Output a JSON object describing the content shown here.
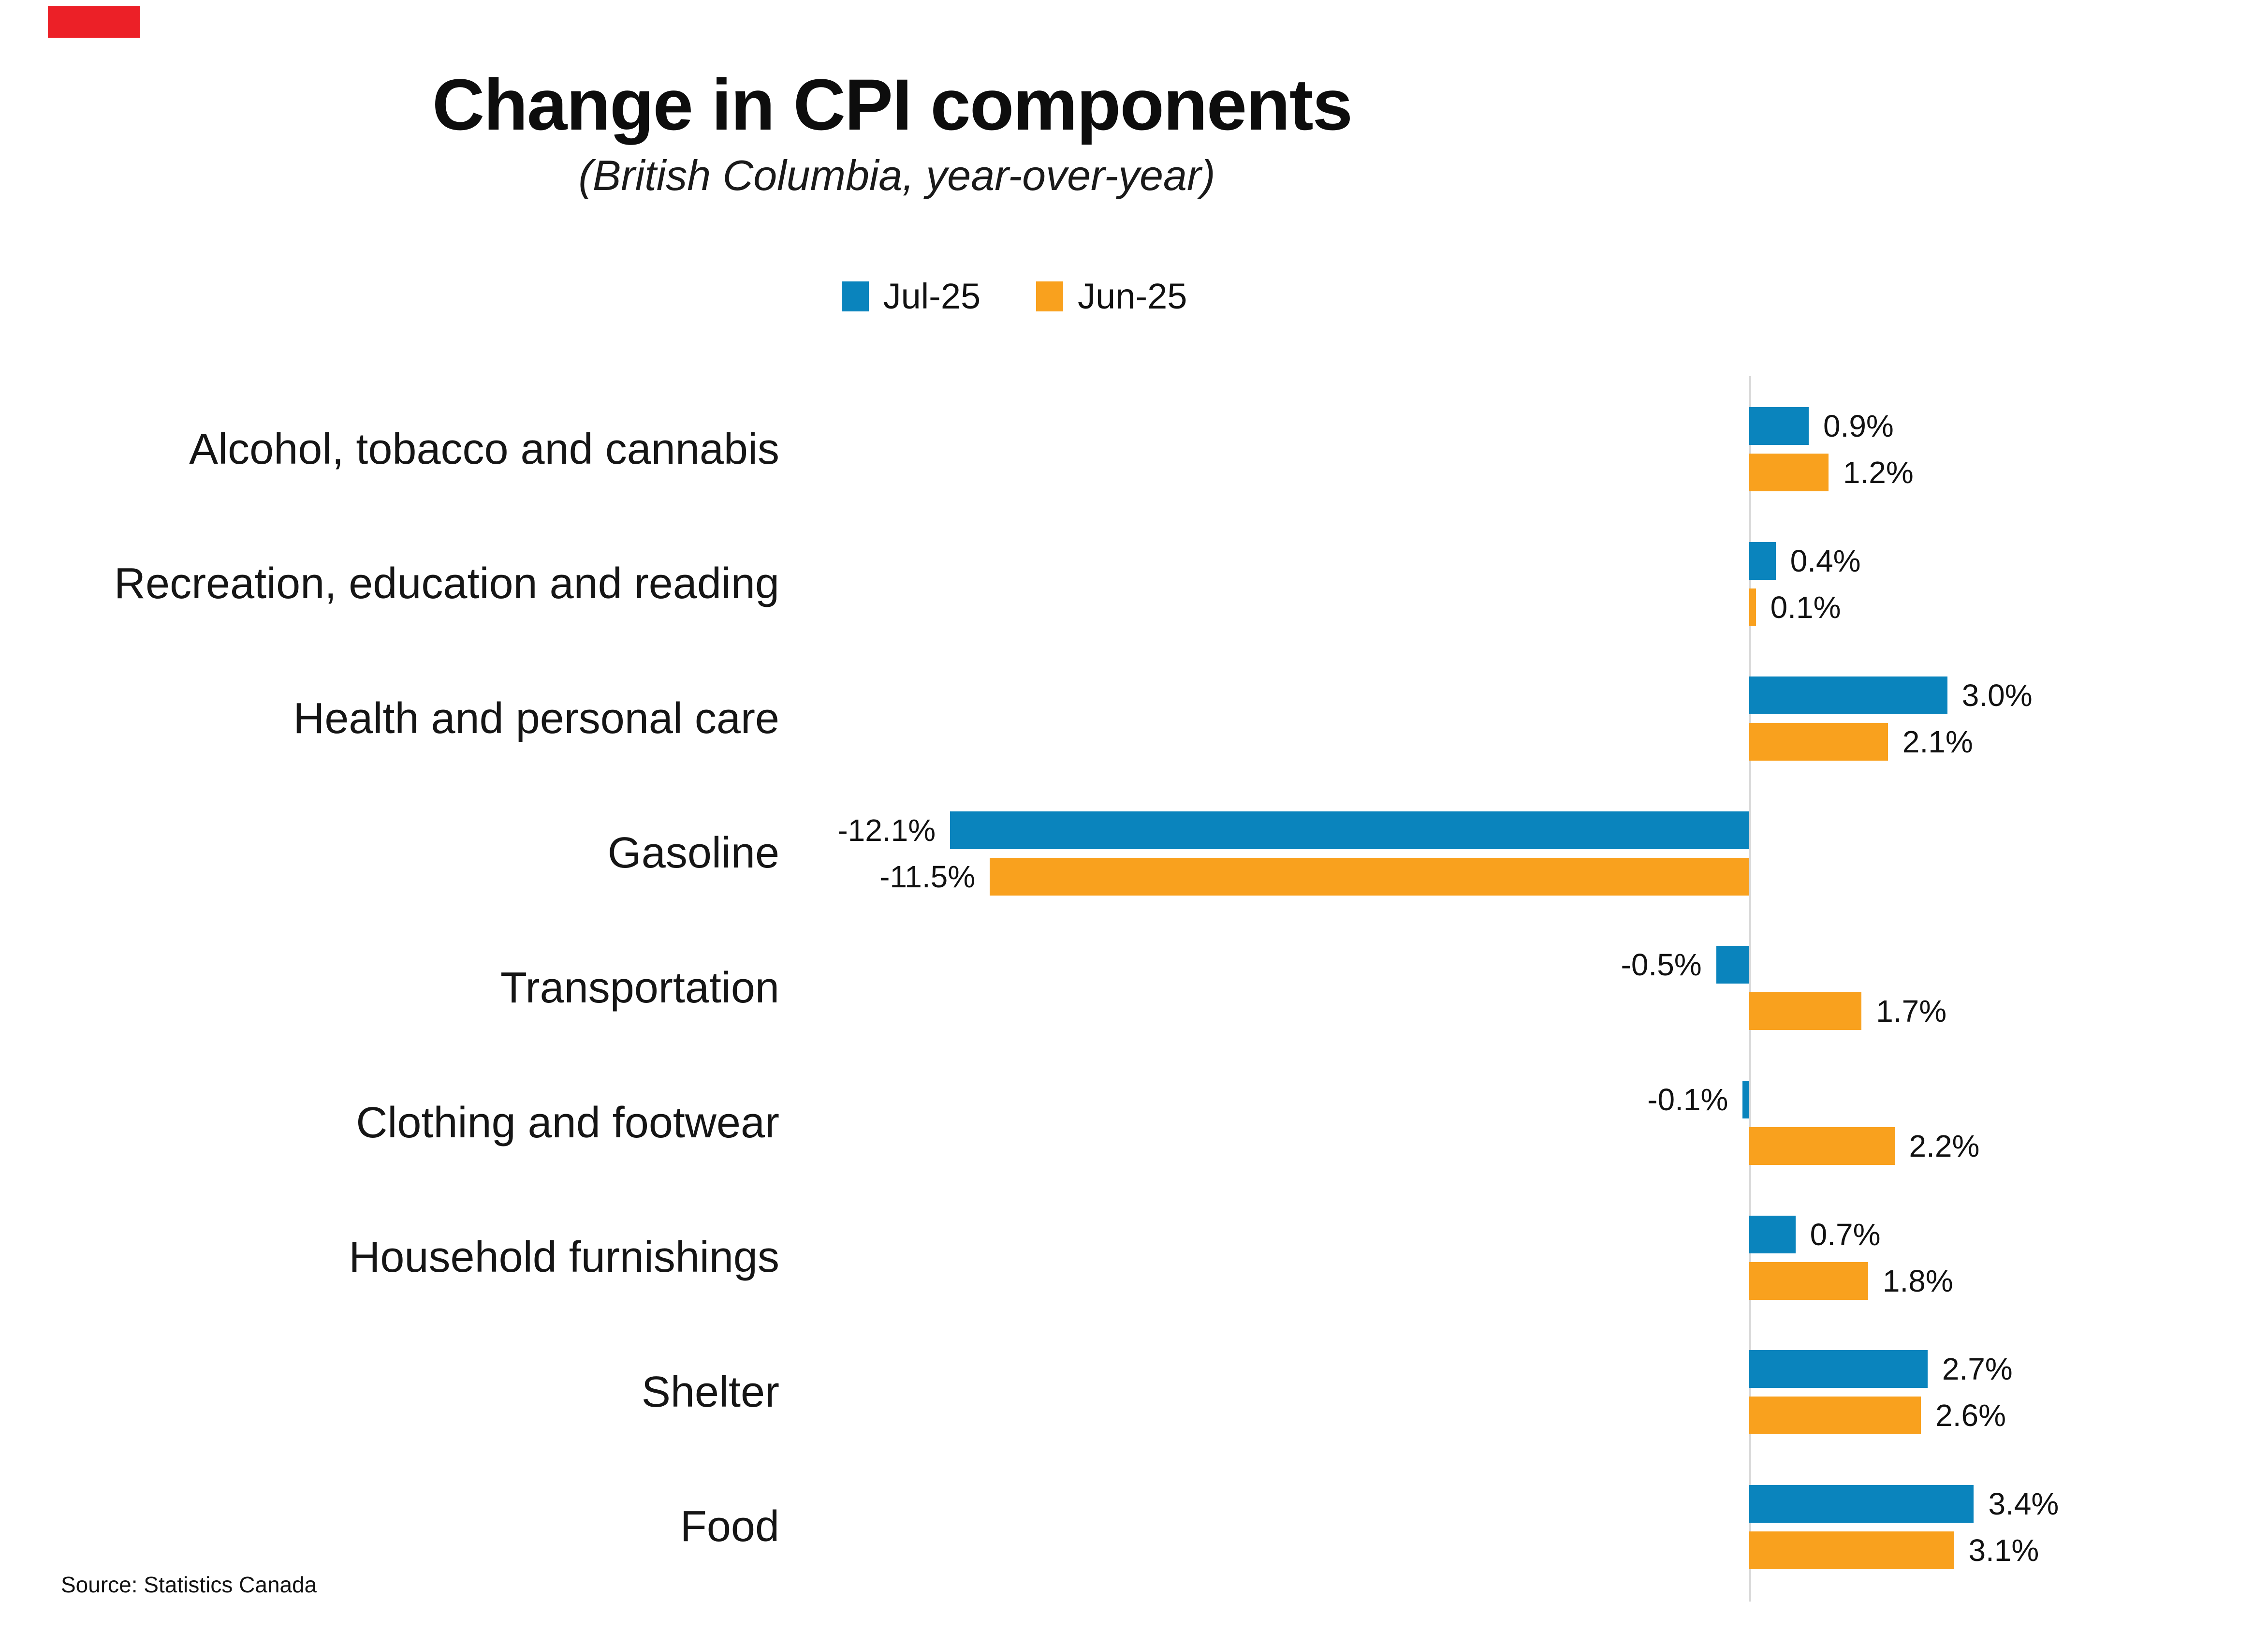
{
  "header": {
    "title": "Change in CPI components",
    "subtitle": "(British Columbia, year-over-year)"
  },
  "accent": {
    "color": "#ec2027"
  },
  "legend": {
    "items": [
      {
        "label": "Jul-25",
        "color": "#0a84bd"
      },
      {
        "label": "Jun-25",
        "color": "#f9a11e"
      }
    ]
  },
  "footer": {
    "source": "Source: Statistics Canada"
  },
  "chart_data": {
    "type": "bar",
    "orientation": "horizontal",
    "title": "Change in CPI components",
    "subtitle": "(British Columbia, year-over-year)",
    "categories": [
      "Alcohol, tobacco and cannabis",
      "Recreation, education and reading",
      "Health and personal care",
      "Gasoline",
      "Transportation",
      "Clothing and footwear",
      "Household furnishings",
      "Shelter",
      "Food"
    ],
    "series": [
      {
        "name": "Jul-25",
        "color": "#0a84bd",
        "values": [
          0.9,
          0.4,
          3.0,
          -12.1,
          -0.5,
          -0.1,
          0.7,
          2.7,
          3.4
        ],
        "labels": [
          "0.9%",
          "0.4%",
          "3.0%",
          "-12.1%",
          "-0.5%",
          "-0.1%",
          "0.7%",
          "2.7%",
          "3.4%"
        ]
      },
      {
        "name": "Jun-25",
        "color": "#f9a11e",
        "values": [
          1.2,
          0.1,
          2.1,
          -11.5,
          1.7,
          2.2,
          1.8,
          2.6,
          3.1
        ],
        "labels": [
          "1.2%",
          "0.1%",
          "2.1%",
          "-11.5%",
          "1.7%",
          "2.2%",
          "1.8%",
          "2.6%",
          "3.1%"
        ]
      }
    ],
    "xlim": [
      -13,
      4.5
    ],
    "grid": false,
    "zero_line_color": "#d9d9d9",
    "legend_position": "top",
    "value_labels": true
  }
}
